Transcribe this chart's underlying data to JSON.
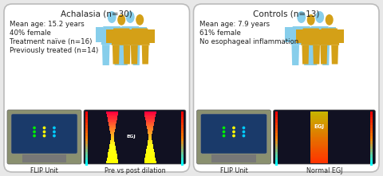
{
  "bg_color": "#e8e8e8",
  "panel_bg": "#ffffff",
  "panel_border": "#bbbbbb",
  "left_title": "Achalasia (n=30)",
  "right_title": "Controls (n=13)",
  "left_text": [
    "Mean age: 15.2 years",
    "40% female",
    "Treatment naïve (n=16)",
    "Previously treated (n=14)"
  ],
  "right_text": [
    "Mean age: 7.9 years",
    "61% female",
    "No esophageal inflammation"
  ],
  "left_bottom_labels": [
    "FLIP Unit",
    "Pre vs post dilation"
  ],
  "right_bottom_labels": [
    "FLIP Unit",
    "Normal EGJ"
  ],
  "blue_silhouette": "#87ceeb",
  "gold_silhouette": "#d4a017",
  "text_color": "#222222",
  "title_fontsize": 7.5,
  "body_fontsize": 6.2,
  "label_fontsize": 5.8
}
